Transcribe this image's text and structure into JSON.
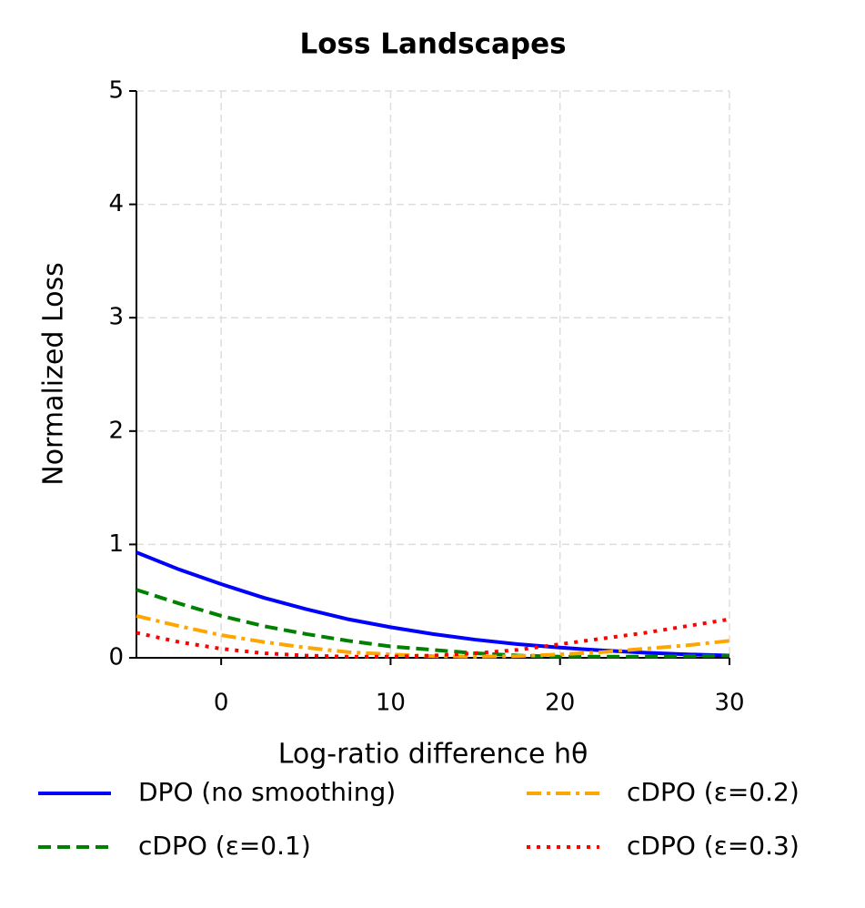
{
  "chart_data": {
    "type": "line",
    "title": "Loss Landscapes",
    "xlabel": "Log-ratio difference hθ",
    "ylabel": "Normalized Loss",
    "x": [
      -5,
      -2.5,
      0,
      2.5,
      5,
      7.5,
      10,
      12.5,
      15,
      17.5,
      20,
      22.5,
      25,
      27.5,
      30
    ],
    "series": [
      {
        "name": "DPO (no smoothing)",
        "color": "#0000ff",
        "dash": "solid",
        "values": [
          0.93,
          0.78,
          0.65,
          0.53,
          0.43,
          0.34,
          0.27,
          0.21,
          0.16,
          0.12,
          0.09,
          0.065,
          0.045,
          0.03,
          0.02
        ]
      },
      {
        "name": "cDPO (ε=0.1)",
        "color": "#008000",
        "dash": "dashed",
        "values": [
          0.6,
          0.48,
          0.37,
          0.28,
          0.21,
          0.15,
          0.1,
          0.07,
          0.04,
          0.02,
          0.01,
          0.01,
          0.01,
          0.015,
          0.02
        ]
      },
      {
        "name": "cDPO (ε=0.2)",
        "color": "#ffa500",
        "dash": "dashdot",
        "values": [
          0.37,
          0.28,
          0.2,
          0.14,
          0.09,
          0.05,
          0.03,
          0.015,
          0.01,
          0.015,
          0.03,
          0.05,
          0.08,
          0.11,
          0.15
        ]
      },
      {
        "name": "cDPO (ε=0.3)",
        "color": "#ff0000",
        "dash": "dotted",
        "values": [
          0.22,
          0.14,
          0.08,
          0.04,
          0.02,
          0.01,
          0.01,
          0.02,
          0.04,
          0.07,
          0.12,
          0.17,
          0.22,
          0.28,
          0.34
        ]
      }
    ],
    "xlim": [
      -5,
      30
    ],
    "xticks": [
      0,
      10,
      20,
      30
    ],
    "ylim": [
      0,
      5
    ],
    "yticks": [
      0,
      1,
      2,
      3,
      4,
      5
    ],
    "grid": true,
    "legend": "below"
  }
}
